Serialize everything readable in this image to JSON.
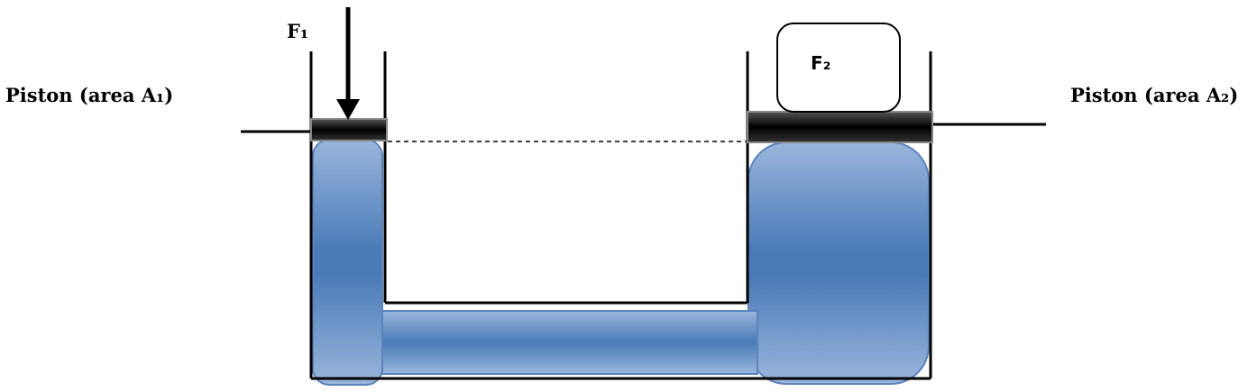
{
  "labels": {
    "piston_left": "Piston (area A₁)",
    "piston_right": "Piston (area A₂)",
    "force_input": "F₁",
    "force_output": "F₂"
  },
  "colors": {
    "fluid_dark": "#4a7bb7",
    "fluid_light": "#9ab5dc",
    "fluid_edge": "#5b84bd",
    "piston": "#111111",
    "outline": "#000000"
  }
}
